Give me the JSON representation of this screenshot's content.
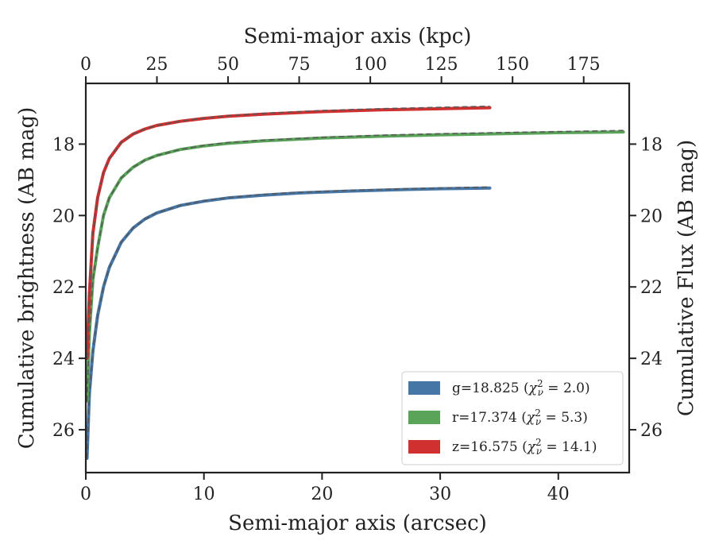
{
  "chart_data": {
    "type": "line",
    "title": "",
    "xlabel": "Semi-major axis (arcsec)",
    "xlabel_top": "Semi-major axis (kpc)",
    "ylabel": "Cumulative brightness (AB mag)",
    "ylabel_right": "Cumulative Flux (AB mag)",
    "xlim": [
      0,
      46
    ],
    "xlim_top": [
      0,
      191
    ],
    "ylim": [
      27.2,
      16.3
    ],
    "y_inverted": true,
    "grid": false,
    "legend_position": "lower-right",
    "xticks": [
      "0",
      "10",
      "20",
      "30",
      "40"
    ],
    "xticks_top": [
      "0",
      "25",
      "50",
      "75",
      "100",
      "125",
      "150",
      "175"
    ],
    "yticks": [
      "18",
      "20",
      "22",
      "24",
      "26"
    ],
    "yticks_right": [
      "18",
      "20",
      "22",
      "24",
      "26"
    ],
    "series": [
      {
        "name": "g",
        "legend_label": "g=18.825 (χ²ᵥ = 2.0)",
        "band": "g",
        "mag": "18.825",
        "chi2": "2.0",
        "color": "#4676a6",
        "x": [
          0.1,
          0.3,
          0.6,
          1,
          1.5,
          2,
          3,
          4,
          5,
          6,
          8,
          10,
          12,
          15,
          18,
          22,
          26,
          30,
          34.2
        ],
        "y": [
          26.8,
          25.0,
          23.8,
          22.8,
          22.0,
          21.45,
          20.75,
          20.35,
          20.1,
          19.93,
          19.72,
          19.6,
          19.51,
          19.43,
          19.37,
          19.32,
          19.28,
          19.25,
          19.23
        ],
        "fit_y": [
          26.8,
          25.0,
          23.8,
          22.8,
          22.0,
          21.45,
          20.75,
          20.35,
          20.1,
          19.93,
          19.72,
          19.59,
          19.5,
          19.41,
          19.35,
          19.3,
          19.26,
          19.23,
          19.2
        ]
      },
      {
        "name": "r",
        "legend_label": "r=17.374 (χ²ᵥ = 5.3)",
        "band": "r",
        "mag": "17.374",
        "chi2": "5.3",
        "color": "#5aa45a",
        "x": [
          0.1,
          0.3,
          0.6,
          1,
          1.5,
          2,
          3,
          4,
          5,
          6,
          8,
          10,
          12,
          15,
          20,
          25,
          30,
          35,
          40,
          45.5
        ],
        "y": [
          25.2,
          23.3,
          21.8,
          20.9,
          20.0,
          19.5,
          18.95,
          18.65,
          18.45,
          18.32,
          18.15,
          18.05,
          17.98,
          17.91,
          17.83,
          17.78,
          17.74,
          17.71,
          17.68,
          17.66
        ],
        "fit_y": [
          25.2,
          23.3,
          21.8,
          20.9,
          20.0,
          19.5,
          18.95,
          18.65,
          18.45,
          18.32,
          18.15,
          18.04,
          17.96,
          17.89,
          17.81,
          17.75,
          17.71,
          17.68,
          17.65,
          17.62
        ]
      },
      {
        "name": "z",
        "legend_label": "z=16.575 (χ²ᵥ = 14.1)",
        "band": "z",
        "mag": "16.575",
        "chi2": "14.1",
        "color": "#d03030",
        "x": [
          0.1,
          0.3,
          0.6,
          1,
          1.5,
          2,
          3,
          4,
          5,
          6,
          8,
          10,
          12,
          15,
          20,
          25,
          30,
          34.2
        ],
        "y": [
          24.0,
          22.2,
          20.5,
          19.5,
          18.8,
          18.4,
          17.95,
          17.72,
          17.58,
          17.48,
          17.36,
          17.28,
          17.22,
          17.16,
          17.09,
          17.04,
          17.01,
          16.98
        ],
        "fit_y": [
          24.0,
          22.2,
          20.5,
          19.5,
          18.8,
          18.4,
          17.95,
          17.72,
          17.58,
          17.48,
          17.36,
          17.27,
          17.21,
          17.14,
          17.06,
          17.01,
          16.97,
          16.94
        ]
      }
    ]
  }
}
